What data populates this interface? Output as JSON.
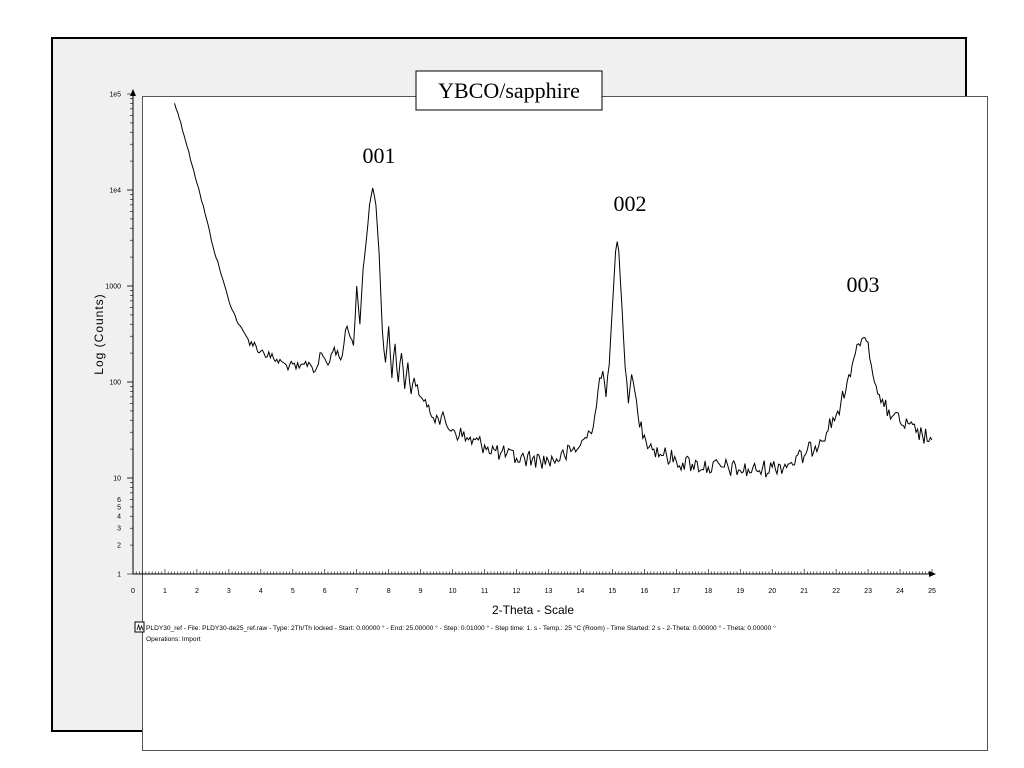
{
  "chart_data": {
    "type": "line",
    "title": "YBCO/sapphire",
    "xlabel": "2-Theta - Scale",
    "ylabel": "Log (Counts)",
    "xlim": [
      0,
      25
    ],
    "ylim": [
      1,
      100000
    ],
    "yscale": "log",
    "x_ticks": [
      "0",
      "1",
      "2",
      "3",
      "4",
      "5",
      "6",
      "7",
      "8",
      "9",
      "10",
      "11",
      "12",
      "13",
      "14",
      "15",
      "16",
      "17",
      "18",
      "19",
      "20",
      "21",
      "22",
      "23",
      "24",
      "25"
    ],
    "y_ticks": [
      {
        "value": 1,
        "label": "1"
      },
      {
        "value": 2,
        "label": "2"
      },
      {
        "value": 3,
        "label": "3"
      },
      {
        "value": 4,
        "label": "4"
      },
      {
        "value": 5,
        "label": "5"
      },
      {
        "value": 6,
        "label": "6"
      },
      {
        "value": 10,
        "label": "10"
      },
      {
        "value": 100,
        "label": "100"
      },
      {
        "value": 1000,
        "label": "1000"
      },
      {
        "value": 10000,
        "label": "1e4"
      },
      {
        "value": 100000,
        "label": "1e5"
      }
    ],
    "annotations": [
      {
        "label": "001",
        "x": 7.6,
        "y": 10500
      },
      {
        "label": "002",
        "x": 15.15,
        "y": 2900
      },
      {
        "label": "003",
        "x": 22.9,
        "y": 290
      }
    ],
    "series": [
      {
        "name": "PLDY30_ref",
        "x": [
          1.3,
          1.5,
          1.7,
          1.9,
          2.1,
          2.3,
          2.5,
          2.8,
          3.0,
          3.3,
          3.6,
          4.0,
          4.4,
          4.8,
          5.2,
          5.5,
          5.7,
          5.9,
          6.1,
          6.3,
          6.5,
          6.7,
          6.9,
          7.0,
          7.1,
          7.2,
          7.3,
          7.4,
          7.5,
          7.6,
          7.7,
          7.8,
          7.9,
          8.0,
          8.1,
          8.2,
          8.3,
          8.4,
          8.5,
          8.6,
          8.7,
          8.8,
          9.0,
          9.2,
          9.5,
          10.0,
          10.5,
          11.0,
          11.5,
          12.0,
          12.5,
          13.0,
          13.5,
          14.0,
          14.3,
          14.5,
          14.6,
          14.7,
          14.8,
          14.9,
          15.0,
          15.1,
          15.15,
          15.2,
          15.3,
          15.4,
          15.5,
          15.6,
          15.7,
          15.8,
          16.0,
          16.3,
          16.7,
          17.0,
          17.5,
          18.0,
          18.5,
          19.0,
          19.5,
          20.0,
          20.5,
          21.0,
          21.5,
          22.0,
          22.3,
          22.5,
          22.7,
          22.8,
          22.9,
          23.0,
          23.1,
          23.3,
          23.5,
          23.8,
          24.0,
          24.5,
          25.0
        ],
        "values": [
          80000,
          50000,
          28000,
          16000,
          9000,
          5000,
          2600,
          1200,
          700,
          400,
          280,
          210,
          175,
          150,
          140,
          160,
          130,
          200,
          150,
          230,
          170,
          380,
          240,
          1000,
          400,
          1500,
          3000,
          7000,
          10500,
          7000,
          2200,
          350,
          160,
          380,
          110,
          250,
          100,
          200,
          85,
          160,
          75,
          110,
          70,
          55,
          45,
          32,
          25,
          22,
          18,
          16,
          16,
          15,
          17,
          22,
          30,
          55,
          110,
          130,
          70,
          150,
          600,
          2300,
          2900,
          2300,
          600,
          140,
          60,
          120,
          80,
          45,
          28,
          20,
          17,
          15,
          14,
          13,
          13,
          12,
          12,
          13,
          14,
          17,
          25,
          45,
          80,
          150,
          250,
          280,
          290,
          260,
          150,
          75,
          55,
          45,
          38,
          30,
          25
        ]
      }
    ],
    "legend": "PLDY30_ref - File: PLDY30-de25_ref.raw - Type: 2Th/Th locked - Start: 0.00000 ° - End: 25.00000 ° - Step: 0.01000 ° - Step time: 1. s - Temp.: 25 °C (Room) - Time Started: 2 s - 2-Theta: 0.00000 ° - Theta: 0.00000 °",
    "legend_ops": "Operations: Import"
  }
}
